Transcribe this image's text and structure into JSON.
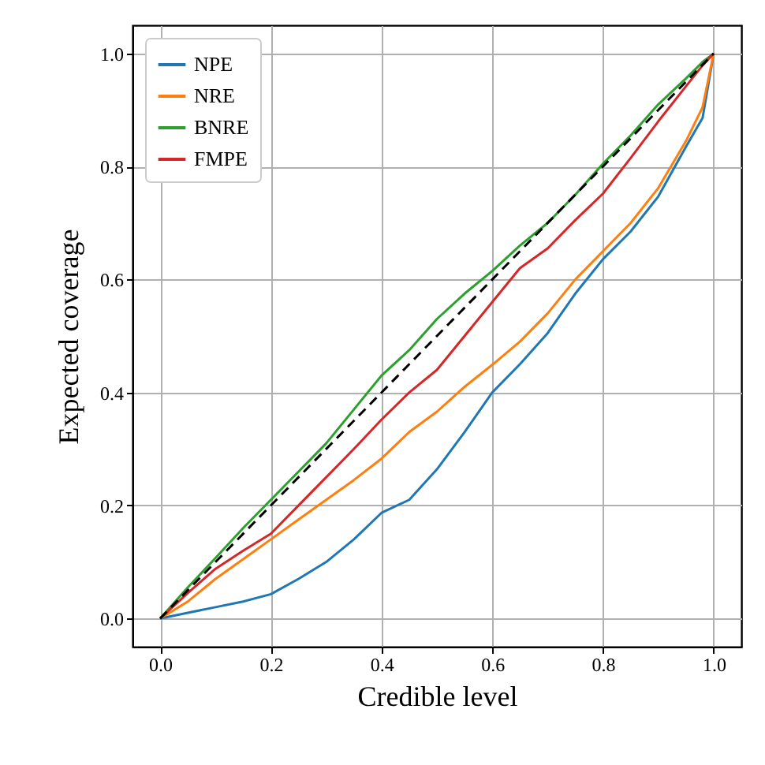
{
  "chart_data": {
    "type": "line",
    "xlabel": "Credible level",
    "ylabel": "Expected coverage",
    "x": [
      0,
      0.05,
      0.1,
      0.15,
      0.2,
      0.25,
      0.3,
      0.35,
      0.4,
      0.45,
      0.5,
      0.55,
      0.6,
      0.65,
      0.7,
      0.75,
      0.8,
      0.85,
      0.9,
      0.95,
      0.98,
      1
    ],
    "series": [
      {
        "name": "NPE",
        "color": "#1f77b4",
        "values": [
          0,
          0.01,
          0.02,
          0.03,
          0.043,
          0.07,
          0.1,
          0.14,
          0.187,
          0.21,
          0.264,
          0.33,
          0.4,
          0.45,
          0.505,
          0.575,
          0.636,
          0.685,
          0.747,
          0.835,
          0.886,
          1
        ]
      },
      {
        "name": "NRE",
        "color": "#ff7f0e",
        "values": [
          0,
          0.03,
          0.07,
          0.105,
          0.14,
          0.175,
          0.21,
          0.245,
          0.283,
          0.33,
          0.366,
          0.41,
          0.449,
          0.49,
          0.54,
          0.6,
          0.65,
          0.7,
          0.762,
          0.845,
          0.905,
          1
        ]
      },
      {
        "name": "BNRE",
        "color": "#2ca02c",
        "values": [
          0,
          0.055,
          0.107,
          0.16,
          0.21,
          0.26,
          0.31,
          0.37,
          0.43,
          0.475,
          0.53,
          0.575,
          0.615,
          0.66,
          0.7,
          0.75,
          0.805,
          0.855,
          0.91,
          0.956,
          0.985,
          1
        ]
      },
      {
        "name": "FMPE",
        "color": "#d62728",
        "values": [
          0,
          0.045,
          0.088,
          0.12,
          0.15,
          0.2,
          0.25,
          0.3,
          0.352,
          0.4,
          0.44,
          0.5,
          0.56,
          0.62,
          0.655,
          0.705,
          0.752,
          0.815,
          0.88,
          0.942,
          0.979,
          1
        ]
      },
      {
        "color": "#000000",
        "line_style": "dashed",
        "x": [
          0,
          1
        ],
        "values": [
          0,
          1
        ]
      }
    ],
    "xlim": [
      -0.05,
      1.05
    ],
    "ylim": [
      -0.05,
      1.05
    ],
    "xticks": [
      {
        "value": 0,
        "label": "0.0"
      },
      {
        "value": 0.2,
        "label": "0.2"
      },
      {
        "value": 0.4,
        "label": "0.4"
      },
      {
        "value": 0.6,
        "label": "0.6"
      },
      {
        "value": 0.8,
        "label": "0.8"
      },
      {
        "value": 1,
        "label": "1.0"
      }
    ],
    "yticks": [
      {
        "value": 0,
        "label": "0.0"
      },
      {
        "value": 0.2,
        "label": "0.2"
      },
      {
        "value": 0.4,
        "label": "0.4"
      },
      {
        "value": 0.6,
        "label": "0.6"
      },
      {
        "value": 0.8,
        "label": "0.8"
      },
      {
        "value": 1,
        "label": "1.0"
      }
    ],
    "grid": true,
    "legend": "top left",
    "line_style": "solid"
  }
}
